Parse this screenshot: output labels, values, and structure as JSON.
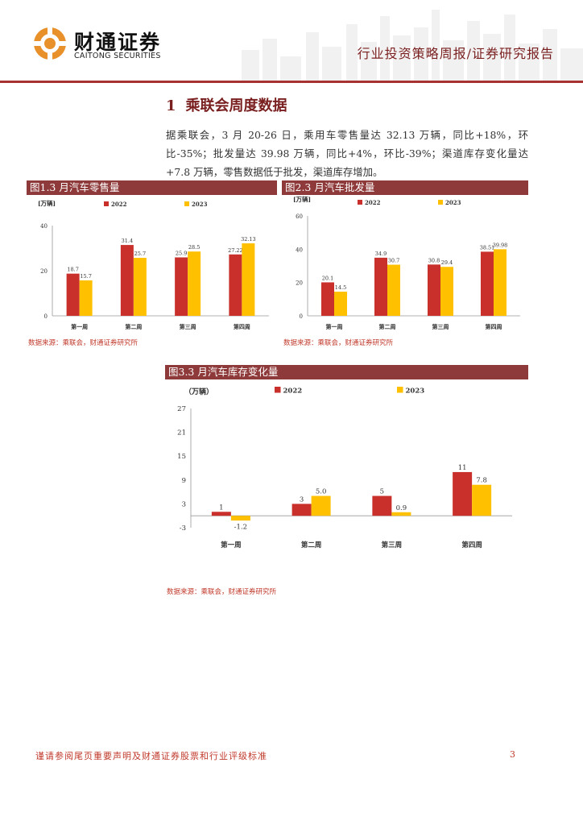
{
  "header": {
    "brand_cn": "财通证券",
    "brand_en": "CAITONG SECURITIES",
    "title": "行业投资策略周报/证券研究报告"
  },
  "section": {
    "number": "1",
    "title": "乘联会周度数据",
    "paragraph": "据乘联会，3 月 20-26 日，乘用车零售量达 32.13 万辆，同比+18%，环比-35%；批发量达 39.98 万辆，同比+4%，环比-39%；渠道库存变化量达+7.8 万辆，零售数据低于批发，渠道库存增加。"
  },
  "colors": {
    "series2022": "#c9302c",
    "series2023": "#ffc000",
    "accent": "#8f3a3a"
  },
  "figures": [
    {
      "title": "图1.3 月汽车零售量",
      "source": "数据来源：乘联会，财通证券研究所"
    },
    {
      "title": "图2.3 月汽车批发量",
      "source": "数据来源：乘联会，财通证券研究所"
    },
    {
      "title": "图3.3 月汽车库存变化量",
      "source": "数据来源：乘联会，财通证券研究所"
    }
  ],
  "chart_data": [
    {
      "type": "bar",
      "title": "图1.3 月汽车零售量",
      "ylabel": "[万辆]",
      "categories": [
        "第一周",
        "第二周",
        "第三周",
        "第四周"
      ],
      "series": [
        {
          "name": "2022",
          "values": [
            18.7,
            31.4,
            25.9,
            27.22
          ]
        },
        {
          "name": "2023",
          "values": [
            15.7,
            25.7,
            28.5,
            32.13
          ]
        }
      ],
      "value_labels": [
        [
          "18.7",
          "31.4",
          "25.9",
          "27.22"
        ],
        [
          "15.7",
          "25.7",
          "28.5",
          "32.13"
        ]
      ],
      "yticks": [
        0,
        20,
        40
      ],
      "ylim": [
        0,
        40
      ],
      "legend": "top"
    },
    {
      "type": "bar",
      "title": "图2.3 月汽车批发量",
      "ylabel": "[万辆]",
      "categories": [
        "第一周",
        "第二周",
        "第三周",
        "第四周"
      ],
      "series": [
        {
          "name": "2022",
          "values": [
            20.1,
            34.9,
            30.8,
            38.51
          ]
        },
        {
          "name": "2023",
          "values": [
            14.5,
            30.7,
            29.4,
            39.98
          ]
        }
      ],
      "value_labels": [
        [
          "20.1",
          "34.9",
          "30.8",
          "38.51"
        ],
        [
          "14.5",
          "30.7",
          "29.4",
          "39.98"
        ]
      ],
      "yticks": [
        0,
        20,
        40,
        60
      ],
      "ylim": [
        0,
        60
      ],
      "legend": "top"
    },
    {
      "type": "bar",
      "title": "图3.3 月汽车库存变化量",
      "ylabel": "（万辆）",
      "categories": [
        "第一周",
        "第二周",
        "第三周",
        "第四周"
      ],
      "series": [
        {
          "name": "2022",
          "values": [
            1,
            3,
            5,
            11
          ]
        },
        {
          "name": "2023",
          "values": [
            -1.2,
            5.0,
            0.9,
            7.8
          ]
        }
      ],
      "value_labels": [
        [
          "1",
          "3",
          "5",
          "11"
        ],
        [
          "-1.2",
          "5.0",
          "0.9",
          "7.8"
        ]
      ],
      "yticks": [
        -3,
        3,
        9,
        15,
        21,
        27
      ],
      "ylim": [
        -3,
        27
      ],
      "legend": "top"
    }
  ],
  "footer": {
    "disclaimer": "谨请参阅尾页重要声明及财通证券股票和行业评级标准",
    "page": "3"
  }
}
